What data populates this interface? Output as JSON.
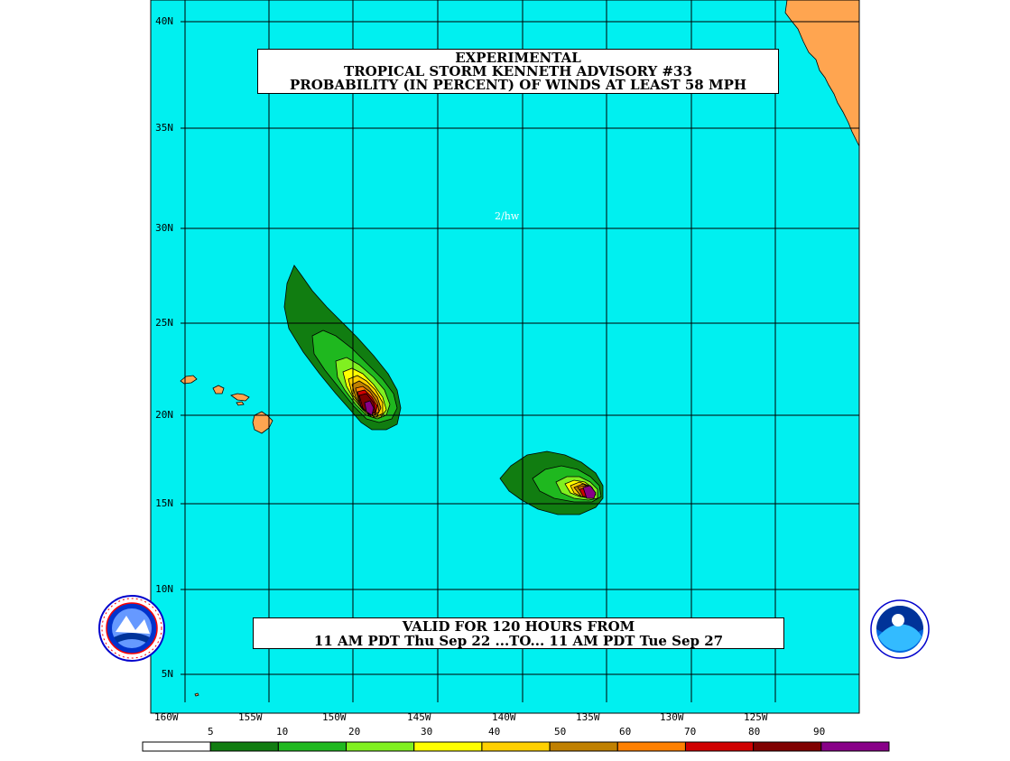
{
  "title": {
    "line1": "EXPERIMENTAL",
    "line2": "TROPICAL STORM KENNETH ADVISORY #33",
    "line3": "PROBABILITY (IN PERCENT) OF WINDS AT LEAST 58 MPH"
  },
  "valid": {
    "line1": "VALID FOR 120 HOURS FROM",
    "line2": "11 AM PDT Thu Sep 22 ...TO... 11 AM PDT Tue Sep 27"
  },
  "annotation": "2/hw",
  "lat_labels": [
    "40N",
    "35N",
    "30N",
    "25N",
    "20N",
    "15N",
    "10N",
    "5N"
  ],
  "lon_labels": [
    "160W",
    "155W",
    "150W",
    "145W",
    "140W",
    "135W",
    "130W",
    "125W"
  ],
  "colorbar": {
    "labels": [
      "5",
      "10",
      "20",
      "30",
      "40",
      "50",
      "60",
      "70",
      "80",
      "90"
    ],
    "colors": [
      "#ffffff",
      "#117d11",
      "#1fb81f",
      "#80f020",
      "#ffff00",
      "#ffd000",
      "#c08000",
      "#ff8000",
      "#d00000",
      "#800000",
      "#880088"
    ]
  },
  "colors": {
    "ocean": "#00f0f0",
    "land": "#ffa550",
    "grid": "#000000"
  },
  "logos": {
    "left": "National Weather Service seal",
    "right": "NOAA logo"
  }
}
